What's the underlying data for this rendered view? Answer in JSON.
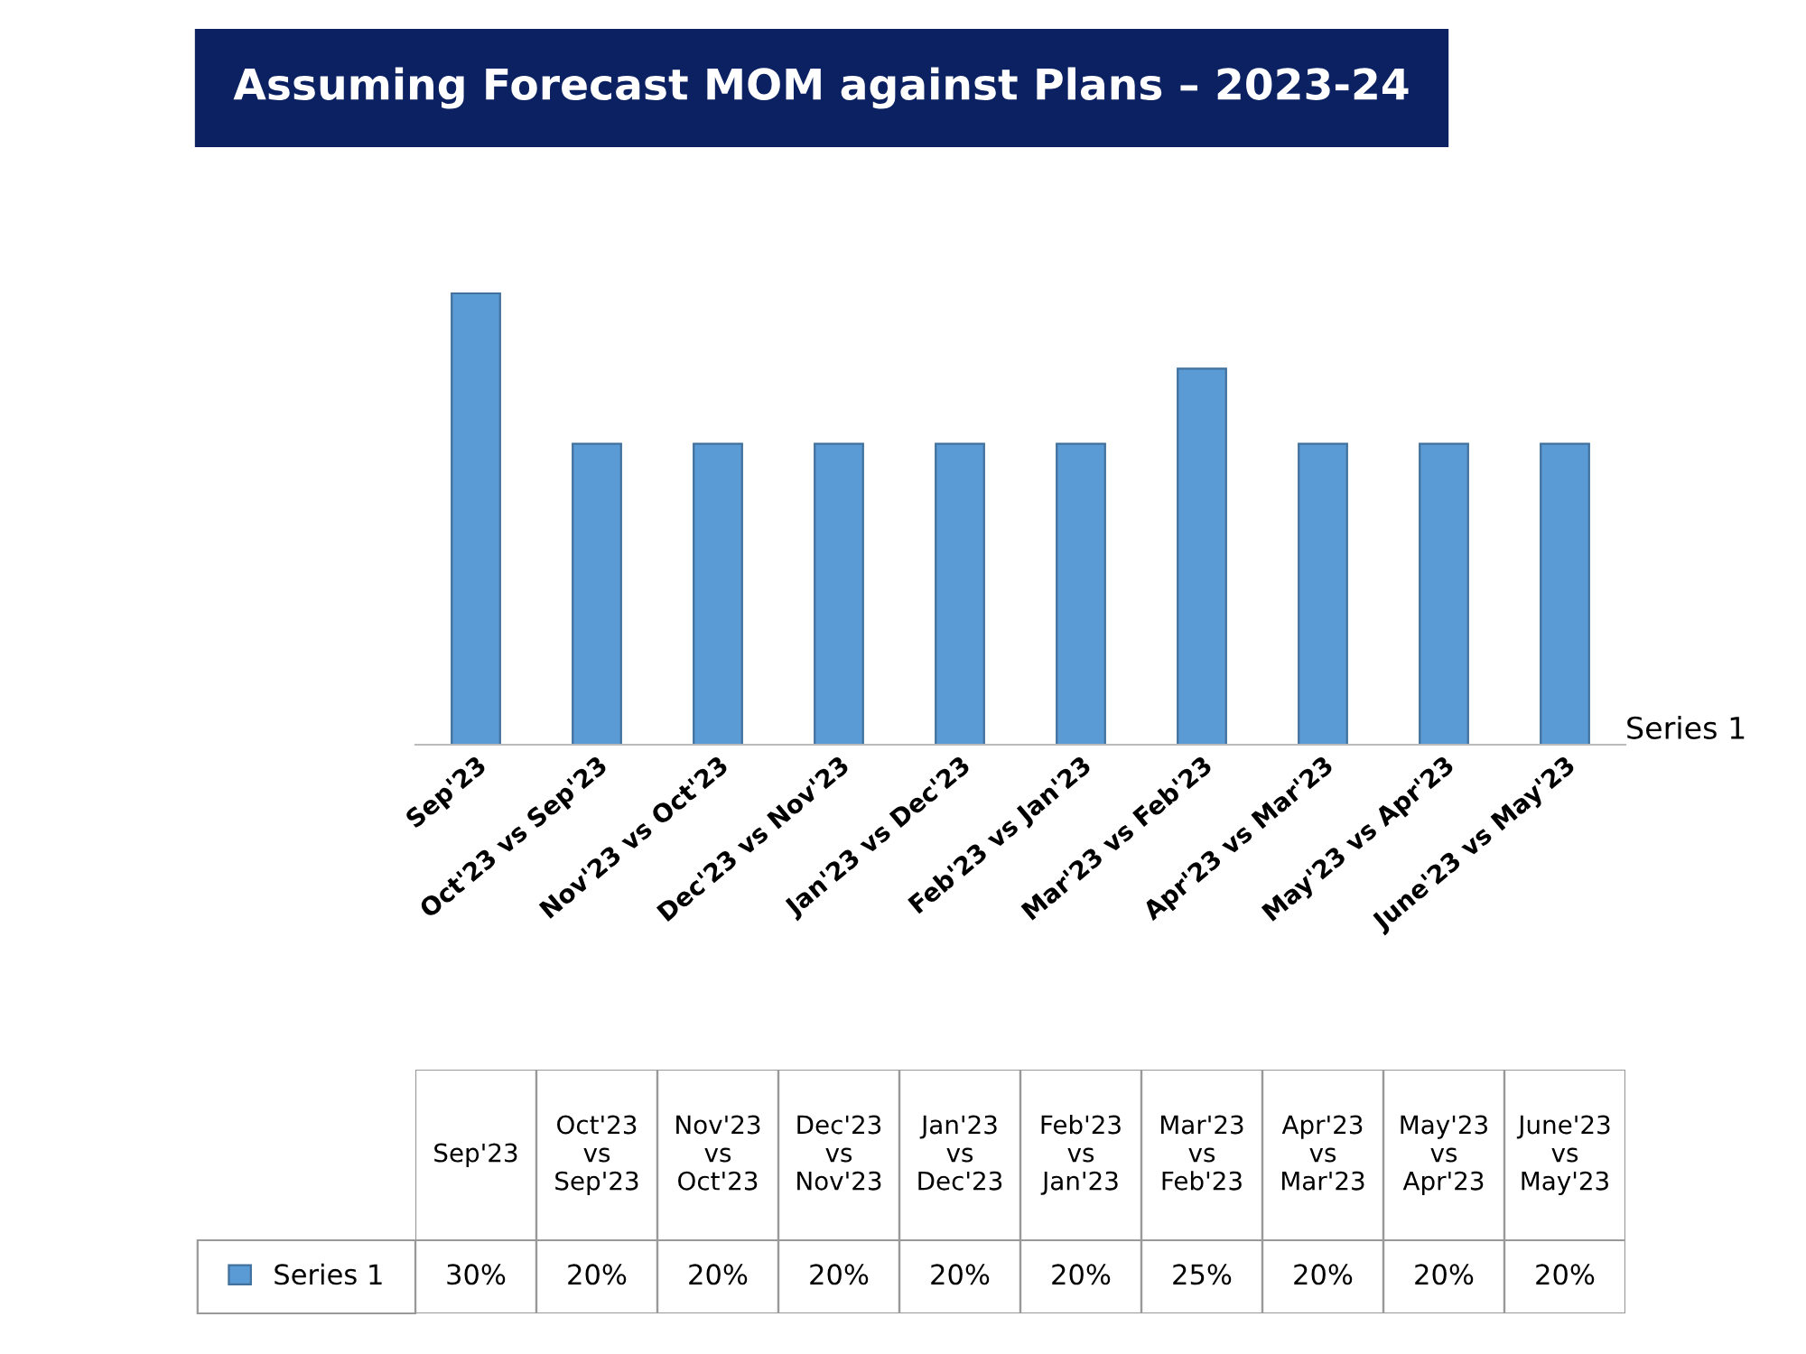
{
  "chart_data": {
    "type": "bar",
    "title": "Assuming Forecast MOM against Plans – 2023-24",
    "categories": [
      "Sep'23",
      "Oct'23 vs Sep'23",
      "Nov'23 vs Oct'23",
      "Dec'23 vs Nov'23",
      "Jan'23 vs Dec'23",
      "Feb'23 vs Jan'23",
      "Mar'23 vs Feb'23",
      "Apr'23 vs Mar'23",
      "May'23 vs Apr'23",
      "June'23 vs May'23"
    ],
    "series": [
      {
        "name": "Series 1",
        "color": "#5b9bd5",
        "values": [
          30,
          20,
          20,
          20,
          20,
          20,
          25,
          20,
          20,
          20
        ],
        "value_labels": [
          "30%",
          "20%",
          "20%",
          "20%",
          "20%",
          "20%",
          "25%",
          "20%",
          "20%",
          "20%"
        ]
      }
    ],
    "data_labels": true,
    "legend": "bottom",
    "grid": false
  }
}
